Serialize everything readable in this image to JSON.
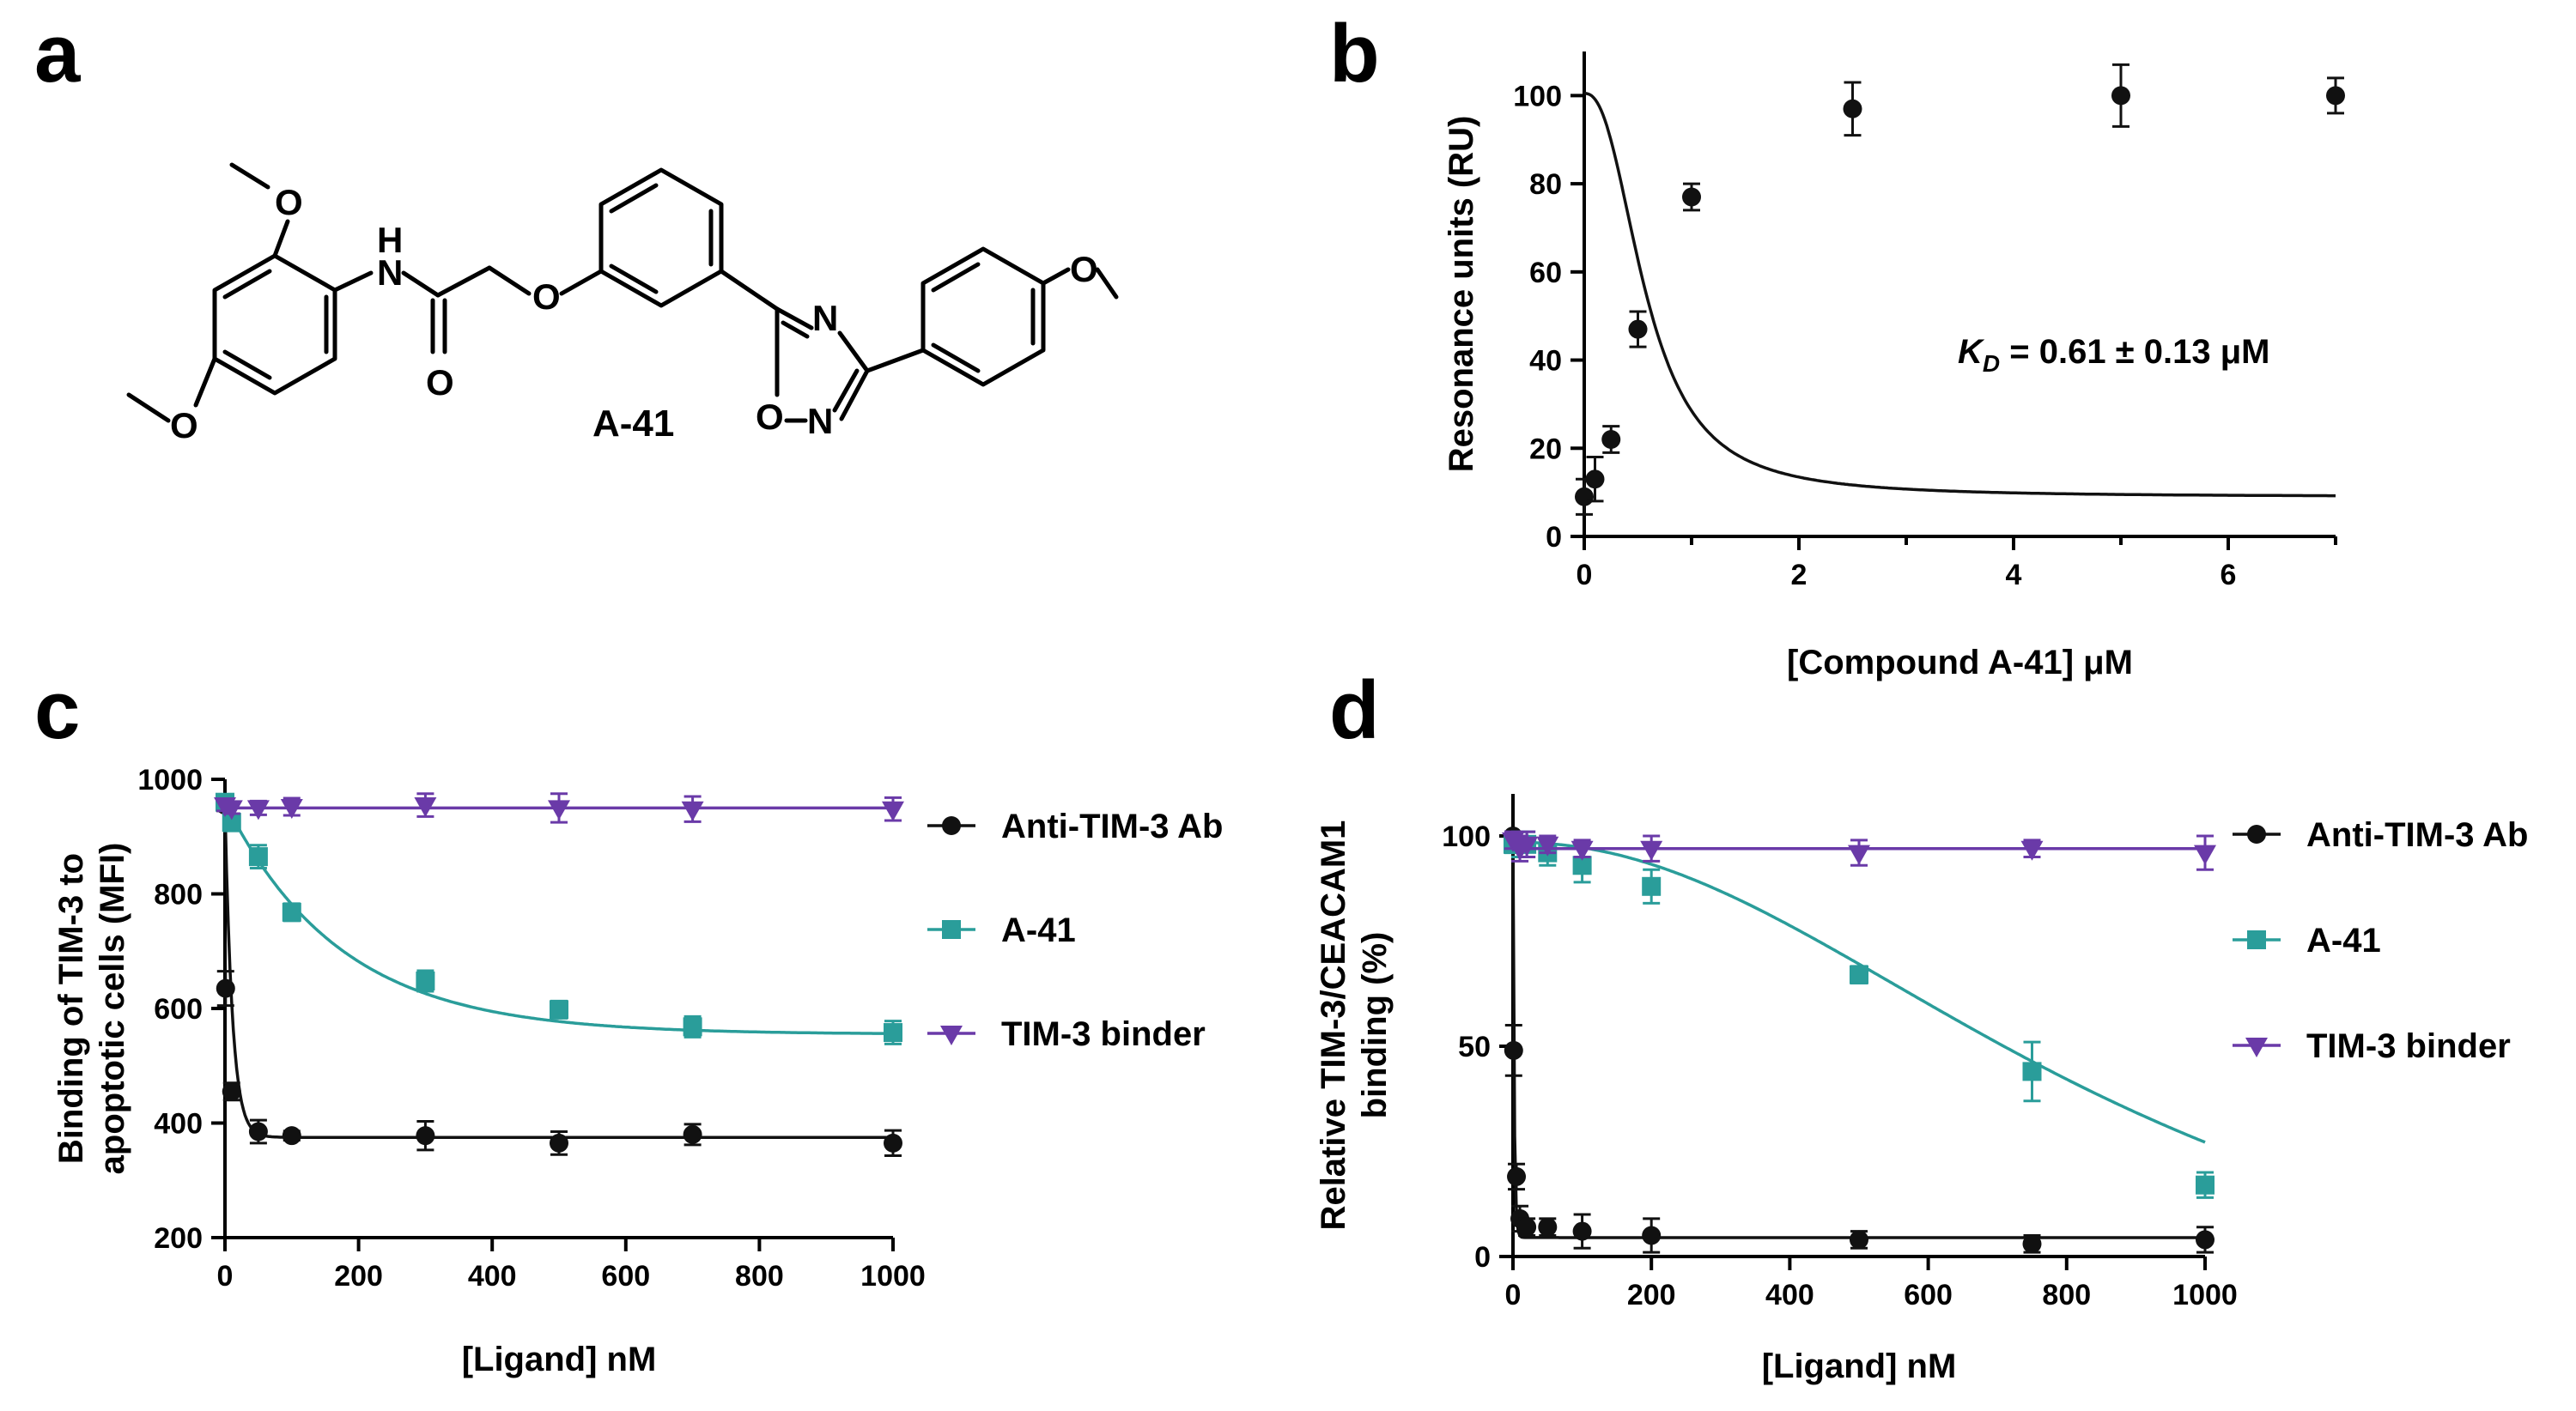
{
  "panels": {
    "a": {
      "letter": "a",
      "compound_label": "A-41",
      "atoms": {
        "o1": "O",
        "o2": "O",
        "o3": "O",
        "o4": "O",
        "nh": "N",
        "h": "H",
        "n1": "N",
        "n2": "N",
        "oring": "O"
      }
    },
    "b": {
      "letter": "b",
      "kd_k": "K",
      "kd_sub": "D",
      "kd_rest": " = 0.61 ± 0.13 μM"
    },
    "c": {
      "letter": "c"
    },
    "d": {
      "letter": "d"
    }
  },
  "colors": {
    "anti": "#111111",
    "a41": "#2a9d9a",
    "binder": "#6a3aa8",
    "axis": "#000000"
  },
  "chart_data": [
    {
      "id": "b",
      "type": "scatter",
      "title": "",
      "xlabel": "[Compound A-41] μM",
      "ylabel": "Resonance units (RU)",
      "xlim": [
        0,
        7
      ],
      "ylim": [
        0,
        110
      ],
      "xticks": [
        0,
        2,
        4,
        6
      ],
      "yticks": [
        0,
        20,
        40,
        60,
        80,
        100
      ],
      "legend": "none",
      "fit": {
        "model": "hill",
        "bottom": 9,
        "top": 100.5,
        "ec50": 0.58,
        "n": 2.4
      },
      "series": [
        {
          "name": "A-41",
          "color_key": "anti",
          "marker": "circle",
          "x": [
            0,
            0.1,
            0.25,
            0.5,
            1.0,
            2.5,
            5.0,
            7.0
          ],
          "y": [
            9,
            13,
            22,
            47,
            77,
            97,
            100,
            100
          ],
          "err": [
            4,
            5,
            3,
            4,
            3,
            6,
            7,
            4
          ]
        }
      ]
    },
    {
      "id": "c",
      "type": "scatter",
      "title": "",
      "xlabel": "[Ligand] nM",
      "ylabel": "Binding of TIM-3 to apoptotic cells (MFI)",
      "ylabel_lines": [
        "Binding of TIM-3 to",
        "apoptotic cells (MFI)"
      ],
      "xlim": [
        0,
        1000
      ],
      "ylim": [
        200,
        1000
      ],
      "xticks": [
        0,
        200,
        400,
        600,
        800,
        1000
      ],
      "yticks": [
        200,
        400,
        600,
        800,
        1000
      ],
      "legend": "right",
      "series": [
        {
          "name": "Anti-TIM-3 Ab",
          "color_key": "anti",
          "marker": "circle",
          "x": [
            0,
            1,
            10,
            50,
            100,
            300,
            500,
            700,
            1000
          ],
          "y": [
            955,
            635,
            455,
            385,
            378,
            378,
            365,
            380,
            365
          ],
          "err": [
            10,
            30,
            15,
            20,
            8,
            25,
            20,
            18,
            22
          ],
          "fit": {
            "model": "exp",
            "base": 375,
            "amp": 580,
            "k": 0.09
          }
        },
        {
          "name": "A-41",
          "color_key": "a41",
          "marker": "square",
          "x": [
            0,
            10,
            50,
            100,
            300,
            500,
            700,
            1000
          ],
          "y": [
            960,
            925,
            865,
            768,
            648,
            598,
            568,
            558
          ],
          "err": [
            10,
            15,
            20,
            15,
            18,
            15,
            18,
            20
          ],
          "fit": {
            "model": "exp",
            "base": 555,
            "amp": 405,
            "k": 0.0058
          }
        },
        {
          "name": "TIM-3 binder",
          "color_key": "binder",
          "marker": "triangle-down",
          "x": [
            0,
            10,
            50,
            100,
            300,
            500,
            700,
            1000
          ],
          "y": [
            955,
            950,
            950,
            952,
            955,
            950,
            948,
            948
          ],
          "err": [
            10,
            10,
            12,
            15,
            20,
            25,
            22,
            20
          ],
          "fit": {
            "model": "flat",
            "base": 950
          }
        }
      ]
    },
    {
      "id": "d",
      "type": "scatter",
      "title": "",
      "xlabel": "[Ligand] nM",
      "ylabel": "Relative TIM-3/CEACAM1 binding (%)",
      "ylabel_lines": [
        "Relative TIM-3/CEACAM1",
        "binding (%)"
      ],
      "xlim": [
        0,
        1000
      ],
      "ylim": [
        0,
        110
      ],
      "xticks": [
        0,
        200,
        400,
        600,
        800,
        1000
      ],
      "yticks": [
        0,
        50,
        100
      ],
      "legend": "right",
      "series": [
        {
          "name": "Anti-TIM-3 Ab",
          "color_key": "anti",
          "marker": "circle",
          "x": [
            0,
            1,
            5,
            10,
            20,
            50,
            100,
            200,
            500,
            750,
            1000
          ],
          "y": [
            100,
            49,
            19,
            9,
            7,
            7,
            6,
            5,
            4,
            3,
            4
          ],
          "err": [
            1,
            6,
            3,
            3,
            2,
            2,
            4,
            4,
            2,
            2,
            3
          ],
          "fit": {
            "model": "exp",
            "base": 4.5,
            "amp": 95.5,
            "k": 0.55
          }
        },
        {
          "name": "A-41",
          "color_key": "a41",
          "marker": "square",
          "x": [
            0,
            10,
            20,
            50,
            100,
            200,
            500,
            750,
            1000
          ],
          "y": [
            98,
            98,
            98,
            96,
            93,
            88,
            67,
            44,
            17
          ],
          "err": [
            2,
            3,
            3,
            3,
            4,
            4,
            2,
            7,
            3
          ],
          "fit": {
            "model": "hill",
            "top": 98.5,
            "bottom": -30,
            "ec50": 900,
            "n": 2.1
          }
        },
        {
          "name": "TIM-3 binder",
          "color_key": "binder",
          "marker": "triangle-down",
          "x": [
            0,
            10,
            20,
            50,
            100,
            200,
            500,
            750,
            1000
          ],
          "y": [
            99,
            97,
            98,
            98,
            97,
            97,
            96,
            97,
            96
          ],
          "err": [
            2,
            3,
            3,
            2,
            2,
            3,
            3,
            2,
            4
          ],
          "fit": {
            "model": "flat",
            "base": 97
          }
        }
      ]
    }
  ]
}
